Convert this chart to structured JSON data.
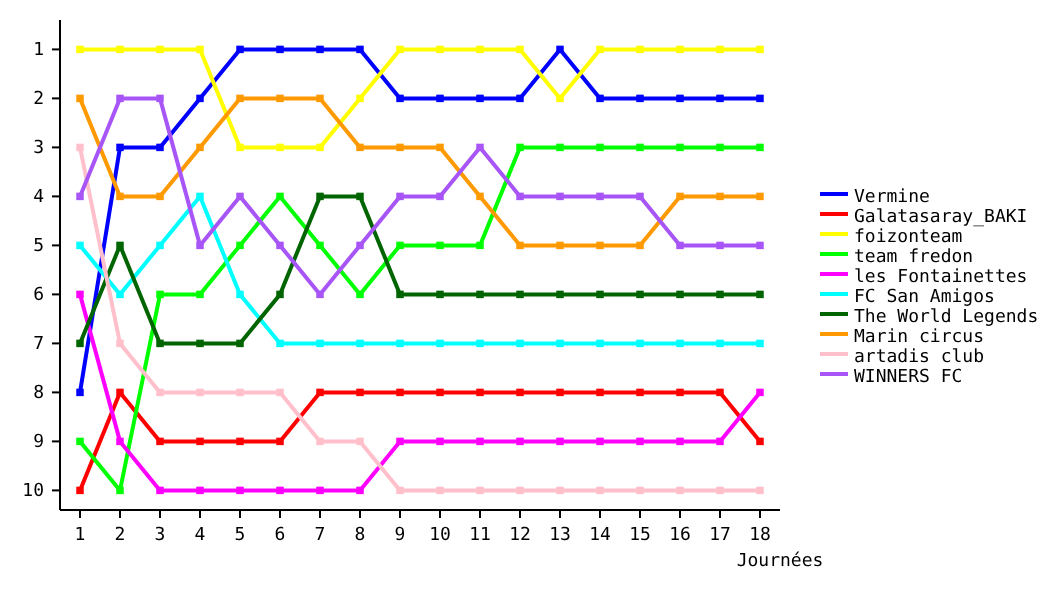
{
  "chart_data": {
    "type": "line",
    "xlabel": "Journées",
    "x": [
      1,
      2,
      3,
      4,
      5,
      6,
      7,
      8,
      9,
      10,
      11,
      12,
      13,
      14,
      15,
      16,
      17,
      18
    ],
    "xlim": [
      0.5,
      18.5
    ],
    "xticks": [
      1,
      2,
      3,
      4,
      5,
      6,
      7,
      8,
      9,
      10,
      11,
      12,
      13,
      14,
      15,
      16,
      17,
      18
    ],
    "ylim": [
      10.4,
      0.4
    ],
    "yticks": [
      1,
      2,
      3,
      4,
      5,
      6,
      7,
      8,
      9,
      10
    ],
    "grid": false,
    "legend": "right",
    "marker": "square",
    "line_style": "solid",
    "series": [
      {
        "name": "Vermine",
        "color": "#0000ff",
        "values": [
          8,
          3,
          3,
          2,
          1,
          1,
          1,
          1,
          2,
          2,
          2,
          2,
          1,
          2,
          2,
          2,
          2,
          2
        ]
      },
      {
        "name": "Galatasaray_BAKI",
        "color": "#ff0000",
        "values": [
          10,
          8,
          9,
          9,
          9,
          9,
          8,
          8,
          8,
          8,
          8,
          8,
          8,
          8,
          8,
          8,
          8,
          9
        ]
      },
      {
        "name": "foizonteam",
        "color": "#ffff00",
        "values": [
          1,
          1,
          1,
          1,
          3,
          3,
          3,
          2,
          1,
          1,
          1,
          1,
          2,
          1,
          1,
          1,
          1,
          1
        ]
      },
      {
        "name": "team fredon",
        "color": "#00ff00",
        "values": [
          9,
          10,
          6,
          6,
          5,
          4,
          5,
          6,
          5,
          5,
          5,
          3,
          3,
          3,
          3,
          3,
          3,
          3
        ]
      },
      {
        "name": "les Fontainettes",
        "color": "#ff00ff",
        "values": [
          6,
          9,
          10,
          10,
          10,
          10,
          10,
          10,
          9,
          9,
          9,
          9,
          9,
          9,
          9,
          9,
          9,
          8
        ]
      },
      {
        "name": "FC San Amigos",
        "color": "#00ffff",
        "values": [
          5,
          6,
          5,
          4,
          6,
          7,
          7,
          7,
          7,
          7,
          7,
          7,
          7,
          7,
          7,
          7,
          7,
          7
        ]
      },
      {
        "name": "The World Legends",
        "color": "#006400",
        "values": [
          7,
          5,
          7,
          7,
          7,
          6,
          4,
          4,
          6,
          6,
          6,
          6,
          6,
          6,
          6,
          6,
          6,
          6
        ]
      },
      {
        "name": "Marin circus",
        "color": "#ff9900",
        "values": [
          2,
          4,
          4,
          3,
          2,
          2,
          2,
          3,
          3,
          3,
          4,
          5,
          5,
          5,
          5,
          4,
          4,
          4
        ]
      },
      {
        "name": "artadis club",
        "color": "#ffc0cb",
        "values": [
          3,
          7,
          8,
          8,
          8,
          8,
          9,
          9,
          10,
          10,
          10,
          10,
          10,
          10,
          10,
          10,
          10,
          10
        ]
      },
      {
        "name": "WINNERS FC",
        "color": "#a855f7",
        "values": [
          4,
          2,
          2,
          5,
          4,
          5,
          6,
          5,
          4,
          4,
          3,
          4,
          4,
          4,
          4,
          5,
          5,
          5
        ]
      }
    ]
  }
}
